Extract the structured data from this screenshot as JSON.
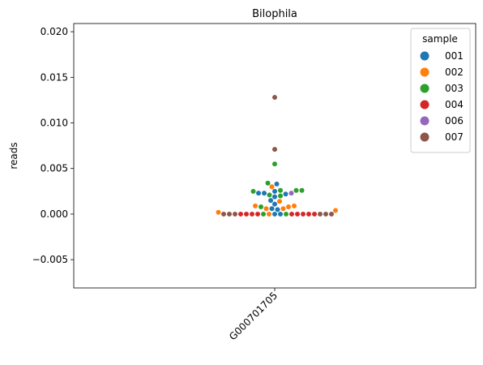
{
  "chart_data": {
    "type": "scatter",
    "subtype": "swarm",
    "title": "Bilophila",
    "xlabel": "",
    "ylabel": "reads",
    "categories": [
      "G000701705"
    ],
    "ylim": [
      -0.0081,
      0.0209
    ],
    "yticks": [
      -0.005,
      0.0,
      0.005,
      0.01,
      0.015,
      0.02
    ],
    "ytick_labels": [
      "−0.005",
      "0.000",
      "0.005",
      "0.010",
      "0.015",
      "0.020"
    ],
    "grid": false,
    "legend": {
      "title": "sample",
      "placement": "top-right"
    },
    "series": [
      {
        "name": "001",
        "color": "#1f77b4",
        "values": [
          0.0,
          0.0,
          0.0005,
          0.0006,
          0.0011,
          0.0015,
          0.0019,
          0.0022,
          0.0023,
          0.0023,
          0.0025,
          0.0033
        ]
      },
      {
        "name": "002",
        "color": "#ff7f0e",
        "values": [
          0.0,
          0.0002,
          0.0004,
          0.0006,
          0.0006,
          0.0008,
          0.0009,
          0.0009,
          0.0014,
          0.003
        ]
      },
      {
        "name": "003",
        "color": "#2ca02c",
        "values": [
          0.0,
          0.0,
          0.0008,
          0.002,
          0.0021,
          0.0025,
          0.0026,
          0.0026,
          0.0026,
          0.0034,
          0.0055
        ]
      },
      {
        "name": "004",
        "color": "#d62728",
        "values": [
          0.0,
          0.0,
          0.0,
          0.0,
          0.0,
          0.0,
          0.0,
          0.0,
          0.0
        ]
      },
      {
        "name": "006",
        "color": "#9467bd",
        "values": [
          0.0023
        ]
      },
      {
        "name": "007",
        "color": "#8c564b",
        "values": [
          0.0,
          0.0,
          0.0,
          0.0,
          0.0,
          0.0,
          0.0071,
          0.0128
        ]
      }
    ]
  }
}
